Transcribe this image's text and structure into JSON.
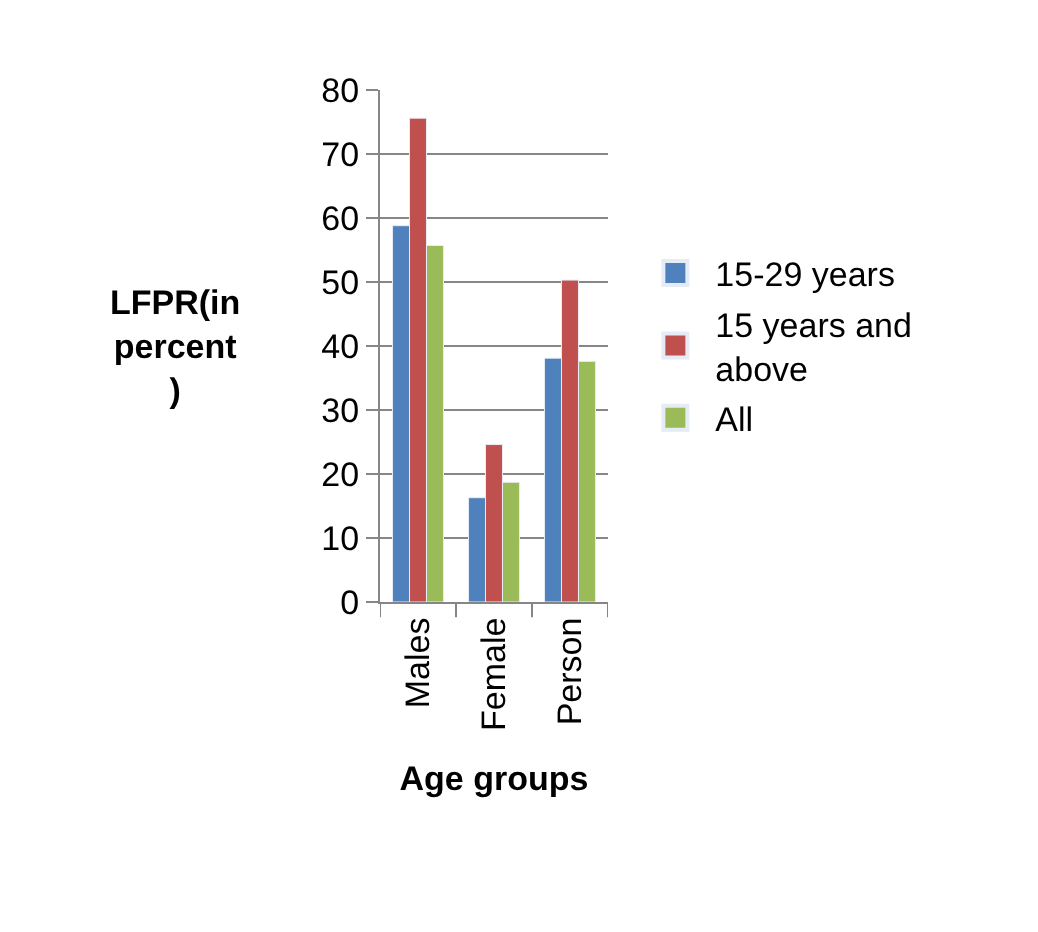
{
  "chart_data": {
    "type": "bar",
    "xlabel": "Age groups",
    "ylabel": "LFPR(in\npercent\n)",
    "categories": [
      "Males",
      "Female",
      "Person"
    ],
    "series": [
      {
        "name": "15-29 years",
        "color": "#4f81bd",
        "values": [
          58.8,
          16.3,
          38.1
        ]
      },
      {
        "name": "15 years and above",
        "color": "#c0504d",
        "values": [
          75.6,
          24.6,
          50.3
        ]
      },
      {
        "name": "All",
        "color": "#9bbb59",
        "values": [
          55.7,
          18.7,
          37.6
        ]
      }
    ],
    "ylim": [
      0,
      80
    ],
    "yticks": [
      0,
      10,
      20,
      30,
      40,
      50,
      60,
      70,
      80
    ],
    "grid": "y",
    "legend": "right"
  }
}
